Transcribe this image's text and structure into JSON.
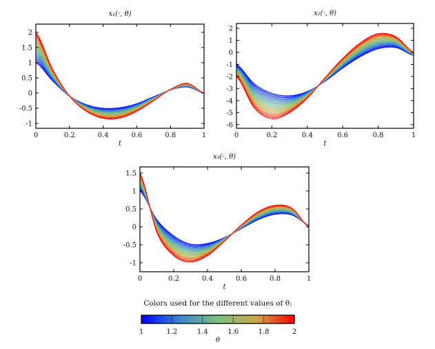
{
  "colorbar": {
    "caption": "Colors used for the different values of θ:",
    "label": "θ",
    "range": [
      1,
      2
    ],
    "ticks": [
      "1",
      "1.2",
      "1.4",
      "1.6",
      "1.8",
      "2"
    ],
    "colors": [
      "#0000ff",
      "#3a86d2",
      "#7cc080",
      "#cfa848",
      "#ff0000"
    ]
  },
  "chart_data": [
    {
      "type": "line",
      "title": "x₁(·, θ)",
      "xlabel": "t",
      "ylabel": "",
      "xlim": [
        0,
        1
      ],
      "ylim": [
        -1.16,
        2.27
      ],
      "xticks": [
        "0",
        "0.2",
        "0.4",
        "0.6",
        "0.8",
        "1"
      ],
      "yticks": [
        "-1",
        "-0.5",
        "0",
        "0.5",
        "1",
        "1.5",
        "2"
      ],
      "grid": false,
      "curve_count": 21,
      "theta_range": [
        1,
        2
      ],
      "t": [
        0,
        0.1,
        0.2,
        0.3,
        0.4,
        0.5,
        0.6,
        0.7,
        0.8,
        0.9,
        1
      ],
      "series": [
        {
          "theta": 1,
          "values": [
            1.0,
            0.4,
            -0.1,
            -0.38,
            -0.5,
            -0.48,
            -0.35,
            -0.12,
            0.1,
            0.2,
            0.0
          ]
        },
        {
          "theta": 2,
          "values": [
            2.0,
            0.78,
            -0.1,
            -0.6,
            -0.83,
            -0.82,
            -0.6,
            -0.25,
            0.12,
            0.32,
            0.0
          ]
        }
      ]
    },
    {
      "type": "line",
      "title": "x₂(·, θ)",
      "xlabel": "t",
      "ylabel": "",
      "xlim": [
        0,
        1
      ],
      "ylim": [
        -6.3,
        2.4
      ],
      "xticks": [
        "0",
        "0.2",
        "0.4",
        "0.6",
        "0.8",
        "1"
      ],
      "yticks": [
        "-6",
        "-5",
        "-4",
        "-3",
        "-2",
        "-1",
        "0",
        "1",
        "2"
      ],
      "grid": false,
      "curve_count": 21,
      "theta_range": [
        1,
        2
      ],
      "t": [
        0,
        0.1,
        0.2,
        0.3,
        0.4,
        0.5,
        0.6,
        0.7,
        0.8,
        0.9,
        1
      ],
      "series": [
        {
          "theta": 1,
          "values": [
            -1.0,
            -2.6,
            -3.4,
            -3.6,
            -3.25,
            -2.4,
            -1.3,
            -0.35,
            0.3,
            0.4,
            -0.25
          ]
        },
        {
          "theta": 2,
          "values": [
            -2.0,
            -4.6,
            -5.5,
            -5.0,
            -3.8,
            -2.1,
            -0.5,
            0.8,
            1.55,
            1.3,
            0.0
          ]
        }
      ]
    },
    {
      "type": "line",
      "title": "x₃(·, θ)",
      "xlabel": "t",
      "ylabel": "",
      "xlim": [
        0,
        1
      ],
      "ylim": [
        -1.25,
        1.67
      ],
      "xticks": [
        "0",
        "0.2",
        "0.4",
        "0.6",
        "0.8",
        "1"
      ],
      "yticks": [
        "-1",
        "-0.5",
        "0",
        "0.5",
        "1",
        "1.5"
      ],
      "grid": false,
      "curve_count": 21,
      "theta_range": [
        1,
        2
      ],
      "t": [
        0,
        0.1,
        0.2,
        0.3,
        0.4,
        0.5,
        0.6,
        0.7,
        0.8,
        0.9,
        1
      ],
      "series": [
        {
          "theta": 1,
          "values": [
            1.0,
            0.2,
            -0.25,
            -0.48,
            -0.46,
            -0.3,
            -0.05,
            0.2,
            0.35,
            0.33,
            0.05
          ]
        },
        {
          "theta": 2,
          "values": [
            1.5,
            -0.15,
            -0.8,
            -0.98,
            -0.8,
            -0.4,
            0.05,
            0.42,
            0.6,
            0.52,
            0.0
          ]
        }
      ]
    }
  ]
}
